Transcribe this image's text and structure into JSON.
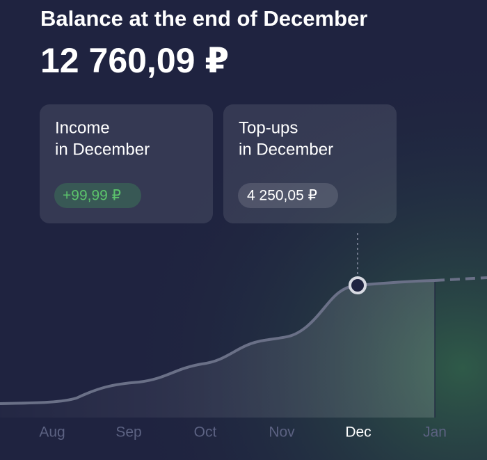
{
  "header": {
    "title": "Balance at the end of  December",
    "balance": "12 760,09 ₽"
  },
  "cards": [
    {
      "title_lines": [
        "Income",
        "in December"
      ],
      "amount": "+99,99 ₽"
    },
    {
      "title_lines": [
        "Top-ups",
        "in December"
      ],
      "amount": "4 250,05 ₽"
    }
  ],
  "months": [
    "Aug",
    "Sep",
    "Oct",
    "Nov",
    "Dec",
    "Jan"
  ]
}
